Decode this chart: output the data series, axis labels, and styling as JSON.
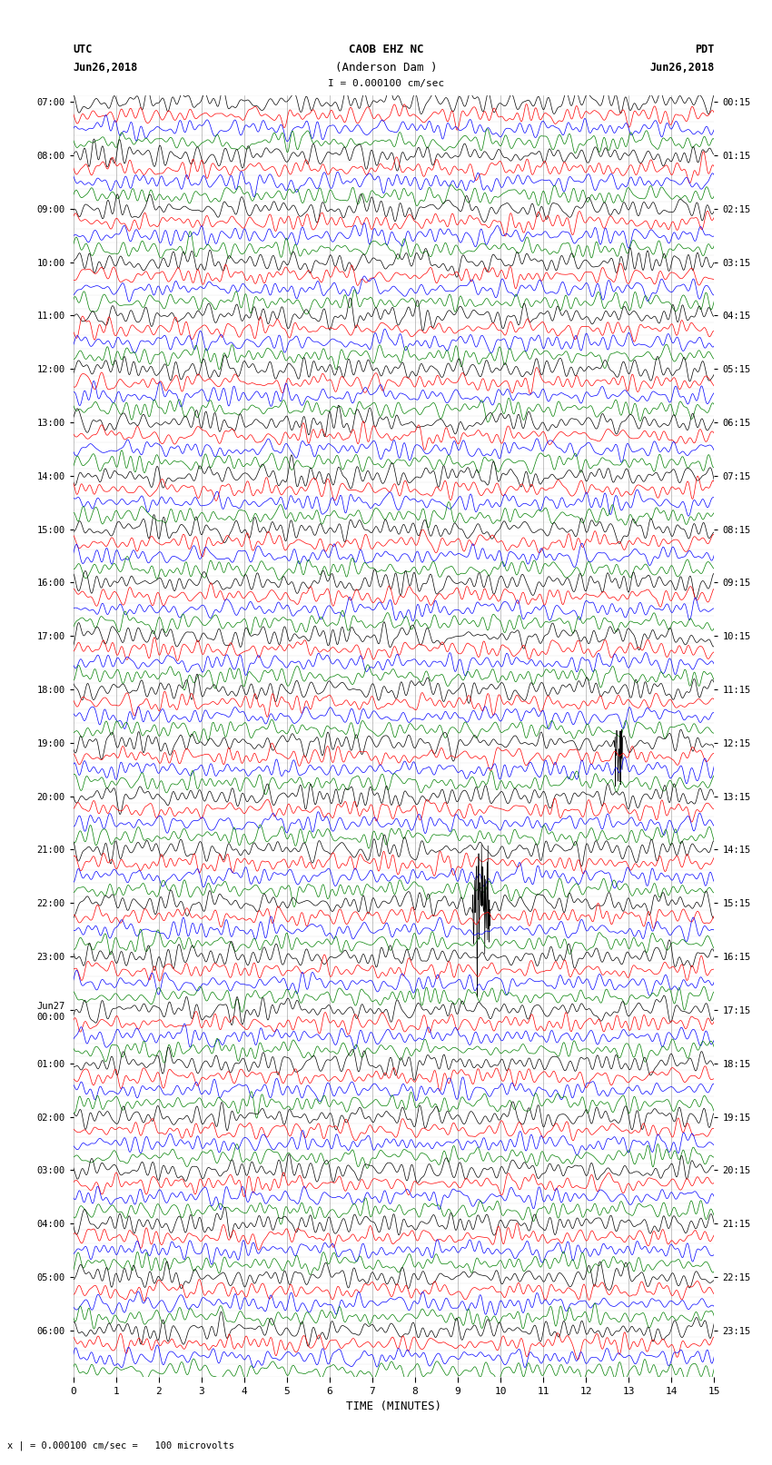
{
  "title_line1": "CAOB EHZ NC",
  "title_line2": "(Anderson Dam )",
  "title_scale": "I = 0.000100 cm/sec",
  "label_left_top": "UTC",
  "label_left_date": "Jun26,2018",
  "label_right_top": "PDT",
  "label_right_date": "Jun26,2018",
  "xlabel": "TIME (MINUTES)",
  "footer": "x | = 0.000100 cm/sec =   100 microvolts",
  "utc_labels": [
    "07:00",
    "",
    "",
    "",
    "08:00",
    "",
    "",
    "",
    "09:00",
    "",
    "",
    "",
    "10:00",
    "",
    "",
    "",
    "11:00",
    "",
    "",
    "",
    "12:00",
    "",
    "",
    "",
    "13:00",
    "",
    "",
    "",
    "14:00",
    "",
    "",
    "",
    "15:00",
    "",
    "",
    "",
    "16:00",
    "",
    "",
    "",
    "17:00",
    "",
    "",
    "",
    "18:00",
    "",
    "",
    "",
    "19:00",
    "",
    "",
    "",
    "20:00",
    "",
    "",
    "",
    "21:00",
    "",
    "",
    "",
    "22:00",
    "",
    "",
    "",
    "23:00",
    "",
    "",
    "",
    "Jun27\n00:00",
    "",
    "",
    "",
    "01:00",
    "",
    "",
    "",
    "02:00",
    "",
    "",
    "",
    "03:00",
    "",
    "",
    "",
    "04:00",
    "",
    "",
    "",
    "05:00",
    "",
    "",
    "",
    "06:00",
    "",
    "",
    ""
  ],
  "pdt_labels": [
    "00:15",
    "",
    "",
    "",
    "01:15",
    "",
    "",
    "",
    "02:15",
    "",
    "",
    "",
    "03:15",
    "",
    "",
    "",
    "04:15",
    "",
    "",
    "",
    "05:15",
    "",
    "",
    "",
    "06:15",
    "",
    "",
    "",
    "07:15",
    "",
    "",
    "",
    "08:15",
    "",
    "",
    "",
    "09:15",
    "",
    "",
    "",
    "10:15",
    "",
    "",
    "",
    "11:15",
    "",
    "",
    "",
    "12:15",
    "",
    "",
    "",
    "13:15",
    "",
    "",
    "",
    "14:15",
    "",
    "",
    "",
    "15:15",
    "",
    "",
    "",
    "16:15",
    "",
    "",
    "",
    "17:15",
    "",
    "",
    "",
    "18:15",
    "",
    "",
    "",
    "19:15",
    "",
    "",
    "",
    "20:15",
    "",
    "",
    "",
    "21:15",
    "",
    "",
    "",
    "22:15",
    "",
    "",
    "",
    "23:15",
    "",
    "",
    ""
  ],
  "trace_colors": [
    "black",
    "red",
    "blue",
    "green"
  ],
  "n_rows": 96,
  "n_minutes": 15,
  "bg_color": "white",
  "grid_color": "#888888",
  "noise_amplitude": 0.018,
  "event_row": 60,
  "event_minute": 9.5,
  "event2_row": 48,
  "event2_minute": 12.7,
  "samples_per_row": 1800
}
